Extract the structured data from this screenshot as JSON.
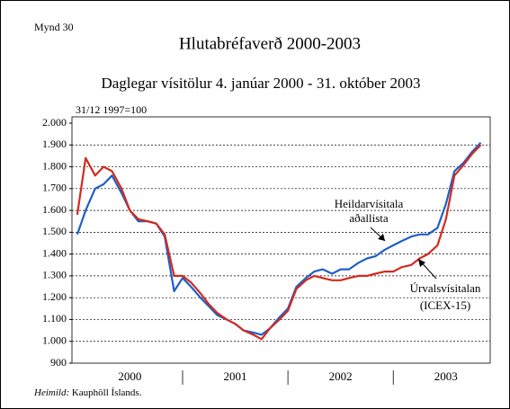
{
  "chart_data": {
    "type": "line",
    "label": "Mynd 30",
    "title": "Hlutabréfaverð 2000-2003",
    "subtitle": "Daglegar vísitölur 4. janúar 2000 - 31. október 2003",
    "y_axis_label": "31/12 1997=100",
    "x": [
      2000.0,
      2000.08,
      2000.17,
      2000.25,
      2000.33,
      2000.42,
      2000.5,
      2000.58,
      2000.67,
      2000.75,
      2000.83,
      2000.92,
      2001.0,
      2001.08,
      2001.17,
      2001.25,
      2001.33,
      2001.42,
      2001.5,
      2001.58,
      2001.67,
      2001.75,
      2001.83,
      2001.92,
      2002.0,
      2002.08,
      2002.17,
      2002.25,
      2002.33,
      2002.42,
      2002.5,
      2002.58,
      2002.67,
      2002.75,
      2002.83,
      2002.92,
      2003.0,
      2003.08,
      2003.17,
      2003.25,
      2003.33,
      2003.42,
      2003.5,
      2003.58,
      2003.67,
      2003.75,
      2003.83
    ],
    "series": [
      {
        "name": "Heildarvísitala aðallista",
        "color": "#1f5fc8",
        "values": [
          1490,
          1600,
          1700,
          1720,
          1760,
          1680,
          1600,
          1550,
          1550,
          1540,
          1480,
          1230,
          1290,
          1250,
          1200,
          1160,
          1120,
          1100,
          1080,
          1050,
          1040,
          1030,
          1060,
          1110,
          1150,
          1250,
          1290,
          1320,
          1330,
          1310,
          1330,
          1330,
          1360,
          1380,
          1390,
          1420,
          1440,
          1460,
          1480,
          1490,
          1490,
          1520,
          1630,
          1780,
          1820,
          1870,
          1910
        ]
      },
      {
        "name": "Úrvalsvísitalan (ICEX-15)",
        "color": "#d42a1e",
        "values": [
          1580,
          1840,
          1760,
          1800,
          1780,
          1700,
          1600,
          1560,
          1550,
          1540,
          1490,
          1300,
          1300,
          1270,
          1220,
          1170,
          1130,
          1100,
          1080,
          1050,
          1030,
          1010,
          1060,
          1100,
          1140,
          1240,
          1280,
          1300,
          1290,
          1280,
          1280,
          1290,
          1300,
          1300,
          1310,
          1320,
          1320,
          1340,
          1350,
          1380,
          1400,
          1440,
          1560,
          1760,
          1810,
          1860,
          1900
        ]
      }
    ],
    "xlim": [
      1999.95,
      2003.92
    ],
    "xticks": [
      {
        "value": 2000.5,
        "label": "2000"
      },
      {
        "value": 2001.5,
        "label": "2001"
      },
      {
        "value": 2002.5,
        "label": "2002"
      },
      {
        "value": 2003.5,
        "label": "2003"
      }
    ],
    "x_separators": [
      2001,
      2002,
      2003
    ],
    "ylim": [
      900,
      2000
    ],
    "yticks": [
      900,
      {
        "value": 1000,
        "label": "1.000"
      },
      {
        "value": 1100,
        "label": "1.100"
      },
      {
        "value": 1200,
        "label": "1.200"
      },
      {
        "value": 1300,
        "label": "1.300"
      },
      {
        "value": 1400,
        "label": "1.400"
      },
      {
        "value": 1500,
        "label": "1.500"
      },
      {
        "value": 1600,
        "label": "1.600"
      },
      {
        "value": 1700,
        "label": "1.700"
      },
      {
        "value": 1800,
        "label": "1.800"
      },
      {
        "value": 1900,
        "label": "1.900"
      },
      {
        "value": 2000,
        "label": "2.000"
      }
    ],
    "grid": true,
    "source_label": "Heimild:",
    "source": "Kauphöll Íslands."
  }
}
